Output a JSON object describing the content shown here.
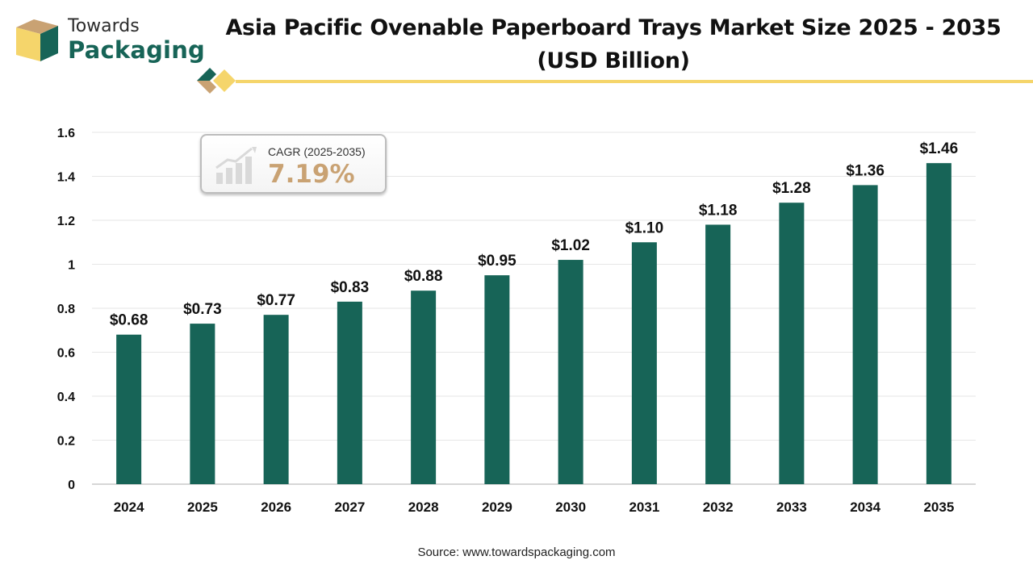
{
  "brand": {
    "line1": "Towards",
    "line2": "Packaging",
    "colors": {
      "green": "#176457",
      "gold": "#f5d56b",
      "tan": "#c9a273"
    }
  },
  "title": {
    "line1": "Asia Pacific Ovenable Paperboard Trays Market Size 2025 - 2035",
    "line2": "(USD Billion)"
  },
  "cagr": {
    "label": "CAGR (2025-2035)",
    "value": "7.19%",
    "icon": "growth-chart-icon"
  },
  "source": "Source: www.towardspackaging.com",
  "chart_data": {
    "type": "bar",
    "categories": [
      "2024",
      "2025",
      "2026",
      "2027",
      "2028",
      "2029",
      "2030",
      "2031",
      "2032",
      "2033",
      "2034",
      "2035"
    ],
    "values": [
      0.68,
      0.73,
      0.77,
      0.83,
      0.88,
      0.95,
      1.02,
      1.1,
      1.18,
      1.28,
      1.36,
      1.46
    ],
    "value_labels": [
      "$0.68",
      "$0.73",
      "$0.77",
      "$0.83",
      "$0.88",
      "$0.95",
      "$1.02",
      "$1.10",
      "$1.18",
      "$1.28",
      "$1.36",
      "$1.46"
    ],
    "y_ticks": [
      "0",
      "0.2",
      "0.4",
      "0.6",
      "0.8",
      "1",
      "1.2",
      "1.4",
      "1.6"
    ],
    "ylim": [
      0,
      1.6
    ],
    "grid": true,
    "bar_color": "#176457",
    "title": "Asia Pacific Ovenable Paperboard Trays Market Size 2025 - 2035",
    "xlabel": "",
    "ylabel": ""
  }
}
